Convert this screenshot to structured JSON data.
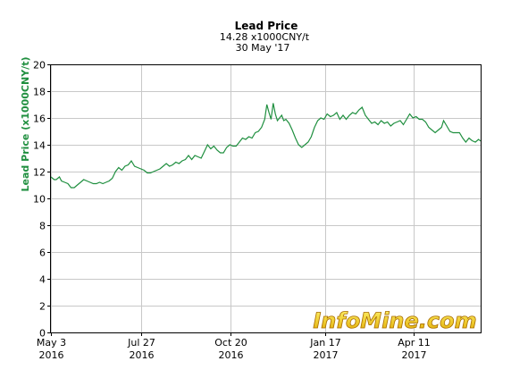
{
  "chart_data": {
    "type": "line",
    "title": "Lead Price",
    "subtitle_value": "14.28 x1000CNY/t",
    "subtitle_date": "30 May '17",
    "ylabel": "Lead Price (x1000CNY/t)",
    "ylim": [
      0,
      20
    ],
    "yticks": [
      0,
      2,
      4,
      6,
      8,
      10,
      12,
      14,
      16,
      18,
      20
    ],
    "xticks": [
      {
        "label": "May 3",
        "year": "2016",
        "day": 0
      },
      {
        "label": "Jul 27",
        "year": "2016",
        "day": 85
      },
      {
        "label": "Oct 20",
        "year": "2016",
        "day": 170
      },
      {
        "label": "Jan 17",
        "year": "2017",
        "day": 259
      },
      {
        "label": "Apr 11",
        "year": "2017",
        "day": 343
      }
    ],
    "grid": true,
    "line_color": "#1f8f3f",
    "series": [
      {
        "points": [
          [
            0,
            11.6
          ],
          [
            3,
            11.4
          ],
          [
            5,
            11.4
          ],
          [
            8,
            11.6
          ],
          [
            10,
            11.3
          ],
          [
            13,
            11.2
          ],
          [
            16,
            11.1
          ],
          [
            19,
            10.8
          ],
          [
            22,
            10.8
          ],
          [
            25,
            11.0
          ],
          [
            28,
            11.2
          ],
          [
            31,
            11.4
          ],
          [
            34,
            11.3
          ],
          [
            37,
            11.2
          ],
          [
            40,
            11.1
          ],
          [
            43,
            11.1
          ],
          [
            46,
            11.2
          ],
          [
            49,
            11.1
          ],
          [
            52,
            11.2
          ],
          [
            55,
            11.3
          ],
          [
            58,
            11.5
          ],
          [
            61,
            12.0
          ],
          [
            64,
            12.3
          ],
          [
            67,
            12.1
          ],
          [
            70,
            12.4
          ],
          [
            73,
            12.5
          ],
          [
            76,
            12.8
          ],
          [
            79,
            12.4
          ],
          [
            82,
            12.3
          ],
          [
            85,
            12.2
          ],
          [
            88,
            12.1
          ],
          [
            91,
            11.9
          ],
          [
            94,
            11.9
          ],
          [
            97,
            12.0
          ],
          [
            100,
            12.1
          ],
          [
            103,
            12.2
          ],
          [
            106,
            12.4
          ],
          [
            109,
            12.6
          ],
          [
            112,
            12.4
          ],
          [
            115,
            12.5
          ],
          [
            118,
            12.7
          ],
          [
            121,
            12.6
          ],
          [
            124,
            12.8
          ],
          [
            127,
            12.9
          ],
          [
            130,
            13.2
          ],
          [
            133,
            12.9
          ],
          [
            136,
            13.2
          ],
          [
            139,
            13.1
          ],
          [
            142,
            13.0
          ],
          [
            145,
            13.5
          ],
          [
            148,
            14.0
          ],
          [
            151,
            13.7
          ],
          [
            154,
            13.9
          ],
          [
            157,
            13.6
          ],
          [
            160,
            13.4
          ],
          [
            163,
            13.4
          ],
          [
            166,
            13.8
          ],
          [
            169,
            14.0
          ],
          [
            172,
            13.9
          ],
          [
            175,
            13.9
          ],
          [
            178,
            14.2
          ],
          [
            181,
            14.5
          ],
          [
            184,
            14.4
          ],
          [
            187,
            14.6
          ],
          [
            190,
            14.5
          ],
          [
            193,
            14.9
          ],
          [
            196,
            15.0
          ],
          [
            199,
            15.3
          ],
          [
            202,
            15.9
          ],
          [
            204,
            17.0
          ],
          [
            206,
            16.4
          ],
          [
            208,
            15.9
          ],
          [
            210,
            17.1
          ],
          [
            212,
            16.3
          ],
          [
            214,
            15.8
          ],
          [
            216,
            16.0
          ],
          [
            218,
            16.2
          ],
          [
            220,
            15.8
          ],
          [
            222,
            15.9
          ],
          [
            225,
            15.6
          ],
          [
            228,
            15.1
          ],
          [
            231,
            14.5
          ],
          [
            234,
            14.0
          ],
          [
            237,
            13.8
          ],
          [
            240,
            14.0
          ],
          [
            243,
            14.2
          ],
          [
            246,
            14.6
          ],
          [
            249,
            15.3
          ],
          [
            252,
            15.8
          ],
          [
            255,
            16.0
          ],
          [
            258,
            15.9
          ],
          [
            261,
            16.3
          ],
          [
            264,
            16.1
          ],
          [
            267,
            16.2
          ],
          [
            270,
            16.4
          ],
          [
            273,
            15.9
          ],
          [
            276,
            16.2
          ],
          [
            279,
            15.9
          ],
          [
            282,
            16.2
          ],
          [
            285,
            16.4
          ],
          [
            288,
            16.3
          ],
          [
            291,
            16.6
          ],
          [
            294,
            16.8
          ],
          [
            297,
            16.2
          ],
          [
            300,
            15.9
          ],
          [
            303,
            15.6
          ],
          [
            306,
            15.7
          ],
          [
            309,
            15.5
          ],
          [
            312,
            15.8
          ],
          [
            315,
            15.6
          ],
          [
            318,
            15.7
          ],
          [
            321,
            15.4
          ],
          [
            324,
            15.6
          ],
          [
            327,
            15.7
          ],
          [
            330,
            15.8
          ],
          [
            333,
            15.5
          ],
          [
            336,
            15.9
          ],
          [
            339,
            16.3
          ],
          [
            342,
            16.0
          ],
          [
            345,
            16.1
          ],
          [
            348,
            15.9
          ],
          [
            351,
            15.9
          ],
          [
            354,
            15.7
          ],
          [
            357,
            15.3
          ],
          [
            360,
            15.1
          ],
          [
            363,
            14.9
          ],
          [
            366,
            15.1
          ],
          [
            369,
            15.3
          ],
          [
            371,
            15.8
          ],
          [
            374,
            15.4
          ],
          [
            377,
            15.0
          ],
          [
            380,
            14.9
          ],
          [
            383,
            14.9
          ],
          [
            386,
            14.9
          ],
          [
            389,
            14.5
          ],
          [
            392,
            14.2
          ],
          [
            395,
            14.5
          ],
          [
            398,
            14.3
          ],
          [
            401,
            14.2
          ],
          [
            404,
            14.4
          ],
          [
            406,
            14.28
          ]
        ]
      }
    ]
  },
  "watermark": "InfoMine.com"
}
